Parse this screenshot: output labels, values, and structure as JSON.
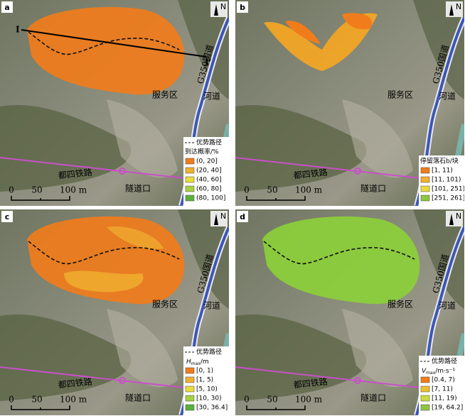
{
  "panels": [
    {
      "letter": "a",
      "north": "N",
      "profile_start": "I",
      "profile_end": "I'",
      "place_labels": {
        "service_area": "服务区",
        "river": "河道",
        "highway": "G350国道",
        "railway": "都四铁路",
        "tunnel": "隧道口"
      },
      "scale": [
        "0",
        "50",
        "100 m"
      ],
      "legend": {
        "path_label": "优势路径",
        "title": "到达概率/%",
        "items": [
          {
            "label": "(0, 20]",
            "color": "#f07c1c"
          },
          {
            "label": "(20, 40]",
            "color": "#f0b030"
          },
          {
            "label": "(40, 60]",
            "color": "#e8dc3c"
          },
          {
            "label": "(60, 80]",
            "color": "#a8d040"
          },
          {
            "label": "(80, 100]",
            "color": "#5cb03c"
          }
        ]
      }
    },
    {
      "letter": "b",
      "north": "N",
      "place_labels": {
        "service_area": "服务区",
        "river": "河道",
        "highway": "G350国道",
        "railway": "都四铁路",
        "tunnel": "隧道口"
      },
      "scale": [
        "0",
        "50",
        "100 m"
      ],
      "legend": {
        "title": "停留落石b/块",
        "items": [
          {
            "label": "[1, 11)",
            "color": "#f07c1c"
          },
          {
            "label": "[11, 101)",
            "color": "#f0b030"
          },
          {
            "label": "[101, 251)",
            "color": "#e8dc3c"
          },
          {
            "label": "[251, 261]",
            "color": "#8cc63c"
          }
        ]
      }
    },
    {
      "letter": "c",
      "north": "N",
      "place_labels": {
        "service_area": "服务区",
        "river": "河道",
        "highway": "G350国道",
        "railway": "都四铁路",
        "tunnel": "隧道口"
      },
      "scale": [
        "0",
        "50",
        "100 m"
      ],
      "legend": {
        "path_label": "优势路径",
        "title_symbol": "H",
        "title_subscript": "max",
        "title_unit": "/m",
        "items": [
          {
            "label": "[0, 1)",
            "color": "#f07c1c"
          },
          {
            "label": "[1, 5)",
            "color": "#f0b030"
          },
          {
            "label": "[5, 10)",
            "color": "#e8dc3c"
          },
          {
            "label": "[10, 30)",
            "color": "#a8d040"
          },
          {
            "label": "[30, 36.4]",
            "color": "#5cb03c"
          }
        ]
      }
    },
    {
      "letter": "d",
      "north": "N",
      "place_labels": {
        "service_area": "服务区",
        "river": "河道",
        "highway": "G350国道",
        "railway": "都四铁路",
        "tunnel": "隧道口"
      },
      "scale": [
        "0",
        "50",
        "100 m"
      ],
      "legend": {
        "path_label": "优势路径",
        "title_symbol": "V",
        "title_subscript": "max",
        "title_unit": "/m·s⁻¹",
        "items": [
          {
            "label": "[0.4, 7)",
            "color": "#f07c1c"
          },
          {
            "label": "[7, 11)",
            "color": "#e8c030"
          },
          {
            "label": "[11, 19)",
            "color": "#c8dc3c"
          },
          {
            "label": "[19, 64.2]",
            "color": "#8cc63c"
          }
        ]
      }
    }
  ]
}
